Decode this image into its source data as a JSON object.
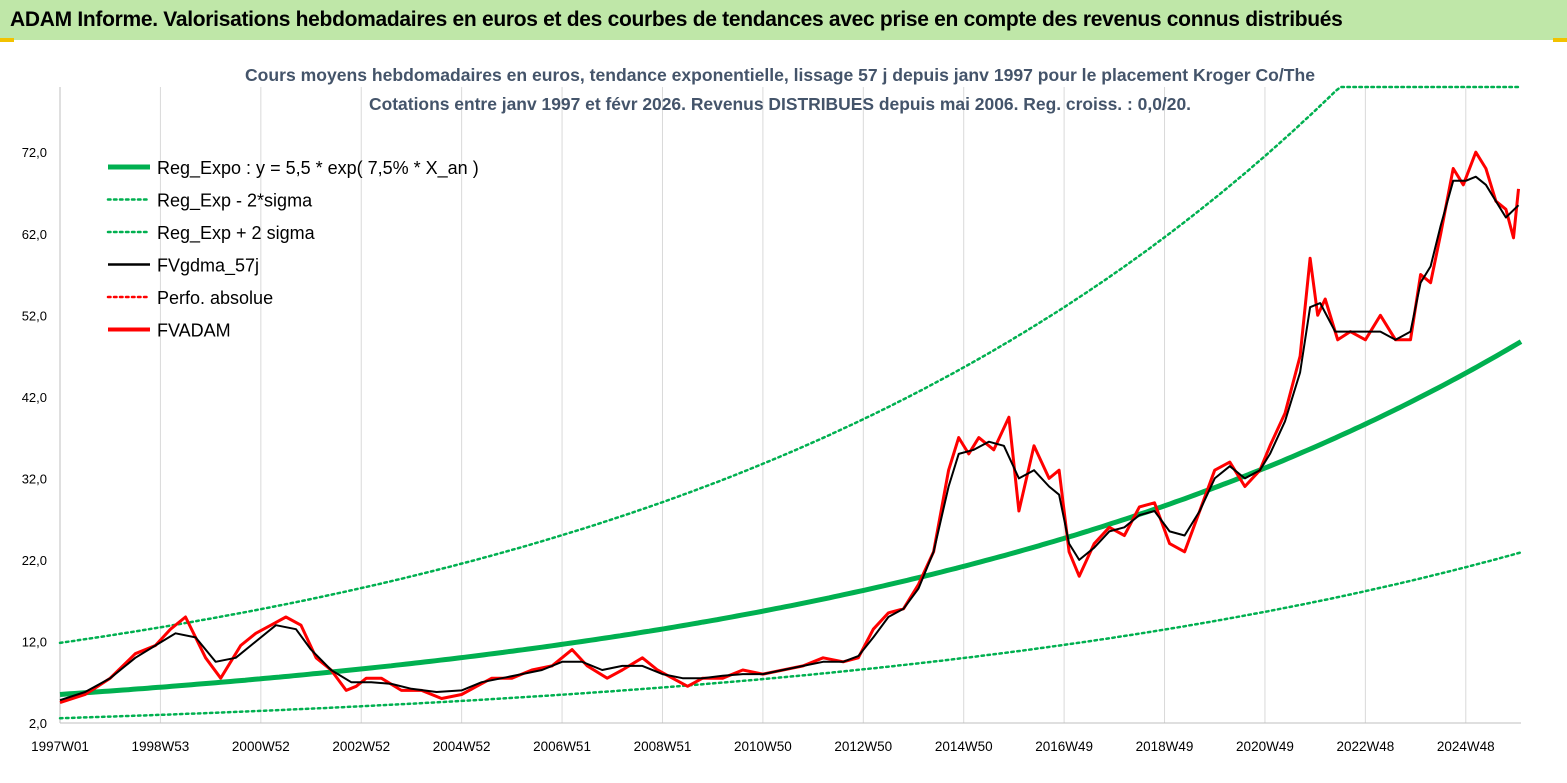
{
  "header": {
    "title": "ADAM Informe. Valorisations hebdomadaires en euros et des courbes de tendances avec prise en compte des revenus connus distribués"
  },
  "colors": {
    "banner_bg": "#bfe7a8",
    "green": "#00b050",
    "red": "#ff0000",
    "black": "#000000",
    "title_text": "#44546a",
    "accent": "#f2c200"
  },
  "chart_data": {
    "type": "line",
    "title_line1": "Cours moyens hebdomadaires en euros, tendance exponentielle, lissage 57 j depuis janv 1997 pour le placement Kroger Co/The",
    "title_line2": "Cotations entre janv 1997 et févr 2026. Revenus DISTRIBUES depuis mai 2006. Reg. croiss. : 0,0/20.",
    "xlabel": "",
    "ylabel": "",
    "x_range": [
      1997.0,
      2026.1
    ],
    "ylim": [
      2,
      80
    ],
    "y_ticks": [
      "2,0",
      "12,0",
      "22,0",
      "32,0",
      "42,0",
      "52,0",
      "62,0",
      "72,0"
    ],
    "x_ticks": [
      {
        "label": "1997W01",
        "x": 1997.0
      },
      {
        "label": "1998W53",
        "x": 1999.0
      },
      {
        "label": "2000W52",
        "x": 2001.0
      },
      {
        "label": "2002W52",
        "x": 2003.0
      },
      {
        "label": "2004W52",
        "x": 2005.0
      },
      {
        "label": "2006W51",
        "x": 2007.0
      },
      {
        "label": "2008W51",
        "x": 2009.0
      },
      {
        "label": "2010W50",
        "x": 2011.0
      },
      {
        "label": "2012W50",
        "x": 2013.0
      },
      {
        "label": "2014W50",
        "x": 2015.0
      },
      {
        "label": "2016W49",
        "x": 2017.0
      },
      {
        "label": "2018W49",
        "x": 2019.0
      },
      {
        "label": "2020W49",
        "x": 2021.0
      },
      {
        "label": "2022W48",
        "x": 2023.0
      },
      {
        "label": "2024W48",
        "x": 2025.0
      }
    ],
    "grid": {
      "vertical": true,
      "horizontal": false
    },
    "legend_position": "top-left",
    "legend": [
      {
        "label": "Reg_Expo : y = 5,5 * exp( 7,5% *  X_an )",
        "color": "#00b050",
        "style": "thick"
      },
      {
        "label": "Reg_Exp - 2*sigma",
        "color": "#00b050",
        "style": "dotted"
      },
      {
        "label": "Reg_Exp + 2 sigma",
        "color": "#00b050",
        "style": "dotted"
      },
      {
        "label": "FVgdma_57j",
        "color": "#000000",
        "style": "solid"
      },
      {
        "label": "Perfo. absolue",
        "color": "#ff0000",
        "style": "dotted"
      },
      {
        "label": "FVADAM",
        "color": "#ff0000",
        "style": "thick"
      }
    ],
    "regression": {
      "a": 5.5,
      "rate": 0.075,
      "lower_factor": 0.47,
      "upper_factor": 2.15
    },
    "series": [
      {
        "name": "FVADAM",
        "x": [
          1997.0,
          1997.5,
          1998.0,
          1998.5,
          1998.9,
          1999.2,
          1999.5,
          1999.7,
          1999.9,
          2000.2,
          2000.6,
          2000.9,
          2001.2,
          2001.5,
          2001.8,
          2002.1,
          2002.4,
          2002.7,
          2002.9,
          2003.1,
          2003.4,
          2003.8,
          2004.2,
          2004.6,
          2005.0,
          2005.3,
          2005.6,
          2006.0,
          2006.4,
          2006.8,
          2007.2,
          2007.5,
          2007.9,
          2008.2,
          2008.6,
          2008.9,
          2009.2,
          2009.5,
          2009.8,
          2010.2,
          2010.6,
          2011.0,
          2011.4,
          2011.8,
          2012.2,
          2012.6,
          2012.9,
          2013.2,
          2013.5,
          2013.8,
          2014.1,
          2014.4,
          2014.7,
          2014.9,
          2015.1,
          2015.3,
          2015.6,
          2015.9,
          2016.1,
          2016.4,
          2016.7,
          2016.9,
          2017.1,
          2017.3,
          2017.6,
          2017.9,
          2018.2,
          2018.5,
          2018.8,
          2019.1,
          2019.4,
          2019.7,
          2020.0,
          2020.3,
          2020.6,
          2020.9,
          2021.1,
          2021.4,
          2021.7,
          2021.9,
          2022.05,
          2022.2,
          2022.45,
          2022.7,
          2023.0,
          2023.3,
          2023.6,
          2023.9,
          2024.1,
          2024.3,
          2024.5,
          2024.75,
          2024.95,
          2025.2,
          2025.4,
          2025.6,
          2025.8,
          2025.95,
          2026.05
        ],
        "y": [
          4.5,
          5.5,
          7.5,
          10.5,
          11.5,
          13.5,
          15.0,
          12.5,
          10.0,
          7.5,
          11.5,
          13.0,
          14.0,
          15.0,
          14.0,
          10.0,
          8.5,
          6.0,
          6.5,
          7.5,
          7.5,
          6.0,
          6.0,
          5.0,
          5.5,
          6.5,
          7.5,
          7.5,
          8.5,
          9.0,
          11.0,
          9.0,
          7.5,
          8.5,
          10.0,
          8.5,
          7.5,
          6.5,
          7.5,
          7.5,
          8.5,
          8.0,
          8.5,
          9.0,
          10.0,
          9.5,
          10.0,
          13.5,
          15.5,
          16.0,
          19.0,
          23.0,
          33.0,
          37.0,
          35.0,
          37.0,
          35.5,
          39.5,
          28.0,
          36.0,
          32.0,
          33.0,
          23.0,
          20.0,
          24.0,
          26.0,
          25.0,
          28.5,
          29.0,
          24.0,
          23.0,
          28.0,
          33.0,
          34.0,
          31.0,
          33.0,
          36.0,
          40.0,
          47.0,
          59.0,
          52.0,
          54.0,
          49.0,
          50.0,
          49.0,
          52.0,
          49.0,
          49.0,
          57.0,
          56.0,
          62.0,
          70.0,
          68.0,
          72.0,
          70.0,
          66.0,
          65.0,
          61.5,
          67.5
        ]
      },
      {
        "name": "FVgdma_57j",
        "x": [
          1997.0,
          1997.5,
          1998.0,
          1998.5,
          1998.9,
          1999.3,
          1999.7,
          2000.1,
          2000.5,
          2000.9,
          2001.3,
          2001.7,
          2002.0,
          2002.4,
          2002.8,
          2003.2,
          2003.6,
          2004.0,
          2004.5,
          2005.0,
          2005.4,
          2005.8,
          2006.2,
          2006.6,
          2007.0,
          2007.4,
          2007.8,
          2008.2,
          2008.6,
          2009.0,
          2009.4,
          2009.8,
          2010.2,
          2010.6,
          2011.0,
          2011.4,
          2011.8,
          2012.2,
          2012.6,
          2012.9,
          2013.2,
          2013.5,
          2013.8,
          2014.1,
          2014.4,
          2014.7,
          2014.9,
          2015.2,
          2015.5,
          2015.8,
          2016.1,
          2016.4,
          2016.7,
          2016.9,
          2017.1,
          2017.3,
          2017.6,
          2017.9,
          2018.2,
          2018.5,
          2018.8,
          2019.1,
          2019.4,
          2019.7,
          2020.0,
          2020.3,
          2020.6,
          2020.9,
          2021.1,
          2021.4,
          2021.7,
          2021.9,
          2022.1,
          2022.4,
          2022.7,
          2023.0,
          2023.3,
          2023.6,
          2023.9,
          2024.1,
          2024.3,
          2024.5,
          2024.75,
          2025.0,
          2025.2,
          2025.4,
          2025.6,
          2025.8,
          2026.05
        ],
        "y": [
          4.8,
          5.8,
          7.5,
          10.0,
          11.5,
          13.0,
          12.5,
          9.5,
          10.0,
          12.0,
          14.0,
          13.5,
          11.0,
          8.5,
          7.0,
          7.0,
          6.8,
          6.2,
          5.8,
          6.0,
          7.0,
          7.5,
          8.0,
          8.5,
          9.5,
          9.5,
          8.5,
          9.0,
          9.0,
          8.0,
          7.5,
          7.5,
          7.8,
          8.0,
          8.0,
          8.5,
          9.0,
          9.5,
          9.5,
          10.2,
          12.5,
          15.0,
          16.0,
          18.5,
          23.0,
          31.0,
          35.0,
          35.5,
          36.5,
          36.0,
          32.0,
          33.0,
          31.0,
          30.0,
          24.0,
          22.0,
          23.5,
          25.5,
          26.0,
          27.5,
          28.0,
          25.5,
          25.0,
          28.0,
          32.0,
          33.5,
          32.0,
          33.0,
          35.0,
          39.0,
          45.0,
          53.0,
          53.5,
          50.0,
          50.0,
          50.0,
          50.0,
          49.0,
          50.0,
          56.0,
          58.0,
          63.0,
          68.5,
          68.5,
          69.0,
          68.0,
          66.0,
          64.0,
          65.5
        ]
      }
    ]
  }
}
